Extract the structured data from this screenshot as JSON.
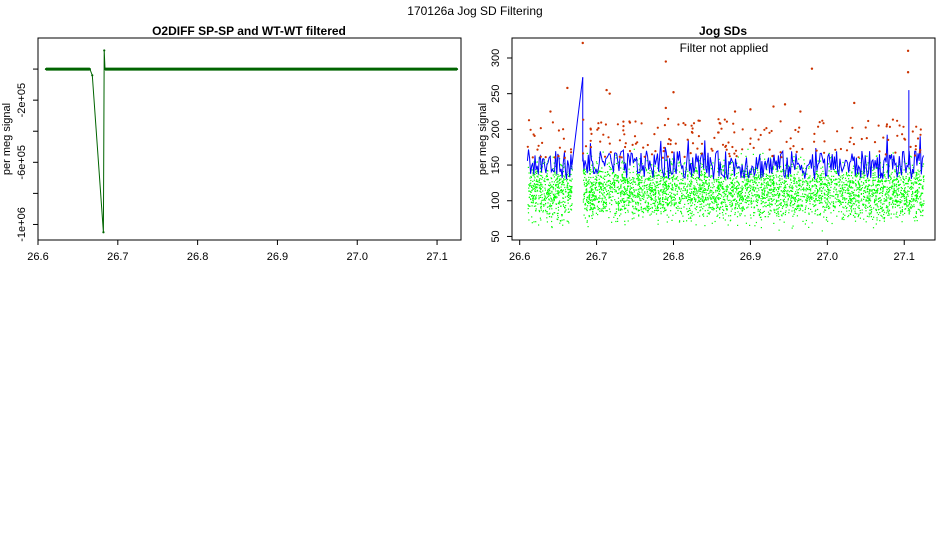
{
  "page_title": "170126a   Jog SD Filtering",
  "colors": {
    "left_series": "#006400",
    "blue_line": "#0000ff",
    "green_points": "#00ff00",
    "red_points": "#cc3300"
  },
  "chart_data": [
    {
      "type": "line",
      "title": "O2DIFF SP-SP and WT-WT filtered",
      "xlabel": "",
      "ylabel": "per meg signal",
      "xlim": [
        26.6,
        27.13
      ],
      "ylim": [
        -1100000,
        200000
      ],
      "x_ticks": [
        26.6,
        26.7,
        26.8,
        26.9,
        27.0,
        27.1
      ],
      "x_tick_labels": [
        "26.6",
        "26.7",
        "26.8",
        "26.9",
        "27.0",
        "27.1"
      ],
      "y_ticks": [
        -1000000,
        -800000,
        -600000,
        -400000,
        -200000,
        0
      ],
      "y_tick_labels": [
        "-1e+06",
        "",
        "-6e+05",
        "",
        "-2e+05",
        ""
      ],
      "series": [
        {
          "x": [
            26.61,
            26.64,
            26.665,
            26.668,
            26.682,
            26.683,
            26.684,
            26.686,
            26.75,
            26.85,
            26.95,
            27.05,
            27.125
          ],
          "y": [
            0,
            0,
            0,
            -40000,
            -1050000,
            120000,
            0,
            0,
            0,
            0,
            0,
            0,
            0
          ]
        }
      ]
    },
    {
      "type": "line",
      "title": "Jog SDs",
      "annotation": "Filter not applied",
      "xlabel": "",
      "ylabel": "per meg signal",
      "xlim": [
        26.59,
        27.14
      ],
      "ylim": [
        45,
        328
      ],
      "x_ticks": [
        26.6,
        26.7,
        26.8,
        26.9,
        27.0,
        27.1
      ],
      "x_tick_labels": [
        "26.6",
        "26.7",
        "26.8",
        "26.9",
        "27.0",
        "27.1"
      ],
      "y_ticks": [
        50,
        100,
        150,
        200,
        250,
        300
      ],
      "y_tick_labels": [
        "50",
        "100",
        "150",
        "200",
        "250",
        "300"
      ],
      "segments": [
        [
          26.61,
          26.668
        ],
        [
          26.682,
          27.125
        ]
      ],
      "gap_line": {
        "x": [
          26.668,
          26.682
        ],
        "y": [
          150,
          273
        ]
      },
      "blue_mean": 150,
      "green_range": [
        55,
        175
      ],
      "red_points": [
        {
          "x": 26.682,
          "y": 321
        },
        {
          "x": 26.79,
          "y": 295
        },
        {
          "x": 26.98,
          "y": 285
        },
        {
          "x": 27.105,
          "y": 310
        },
        {
          "x": 27.105,
          "y": 280
        },
        {
          "x": 26.713,
          "y": 255
        },
        {
          "x": 26.717,
          "y": 250
        },
        {
          "x": 26.8,
          "y": 252
        },
        {
          "x": 26.662,
          "y": 258
        },
        {
          "x": 27.035,
          "y": 237
        },
        {
          "x": 26.93,
          "y": 232
        },
        {
          "x": 26.945,
          "y": 235
        },
        {
          "x": 26.965,
          "y": 225
        },
        {
          "x": 26.79,
          "y": 230
        },
        {
          "x": 26.88,
          "y": 225
        },
        {
          "x": 26.64,
          "y": 225
        },
        {
          "x": 26.9,
          "y": 228
        }
      ]
    }
  ]
}
